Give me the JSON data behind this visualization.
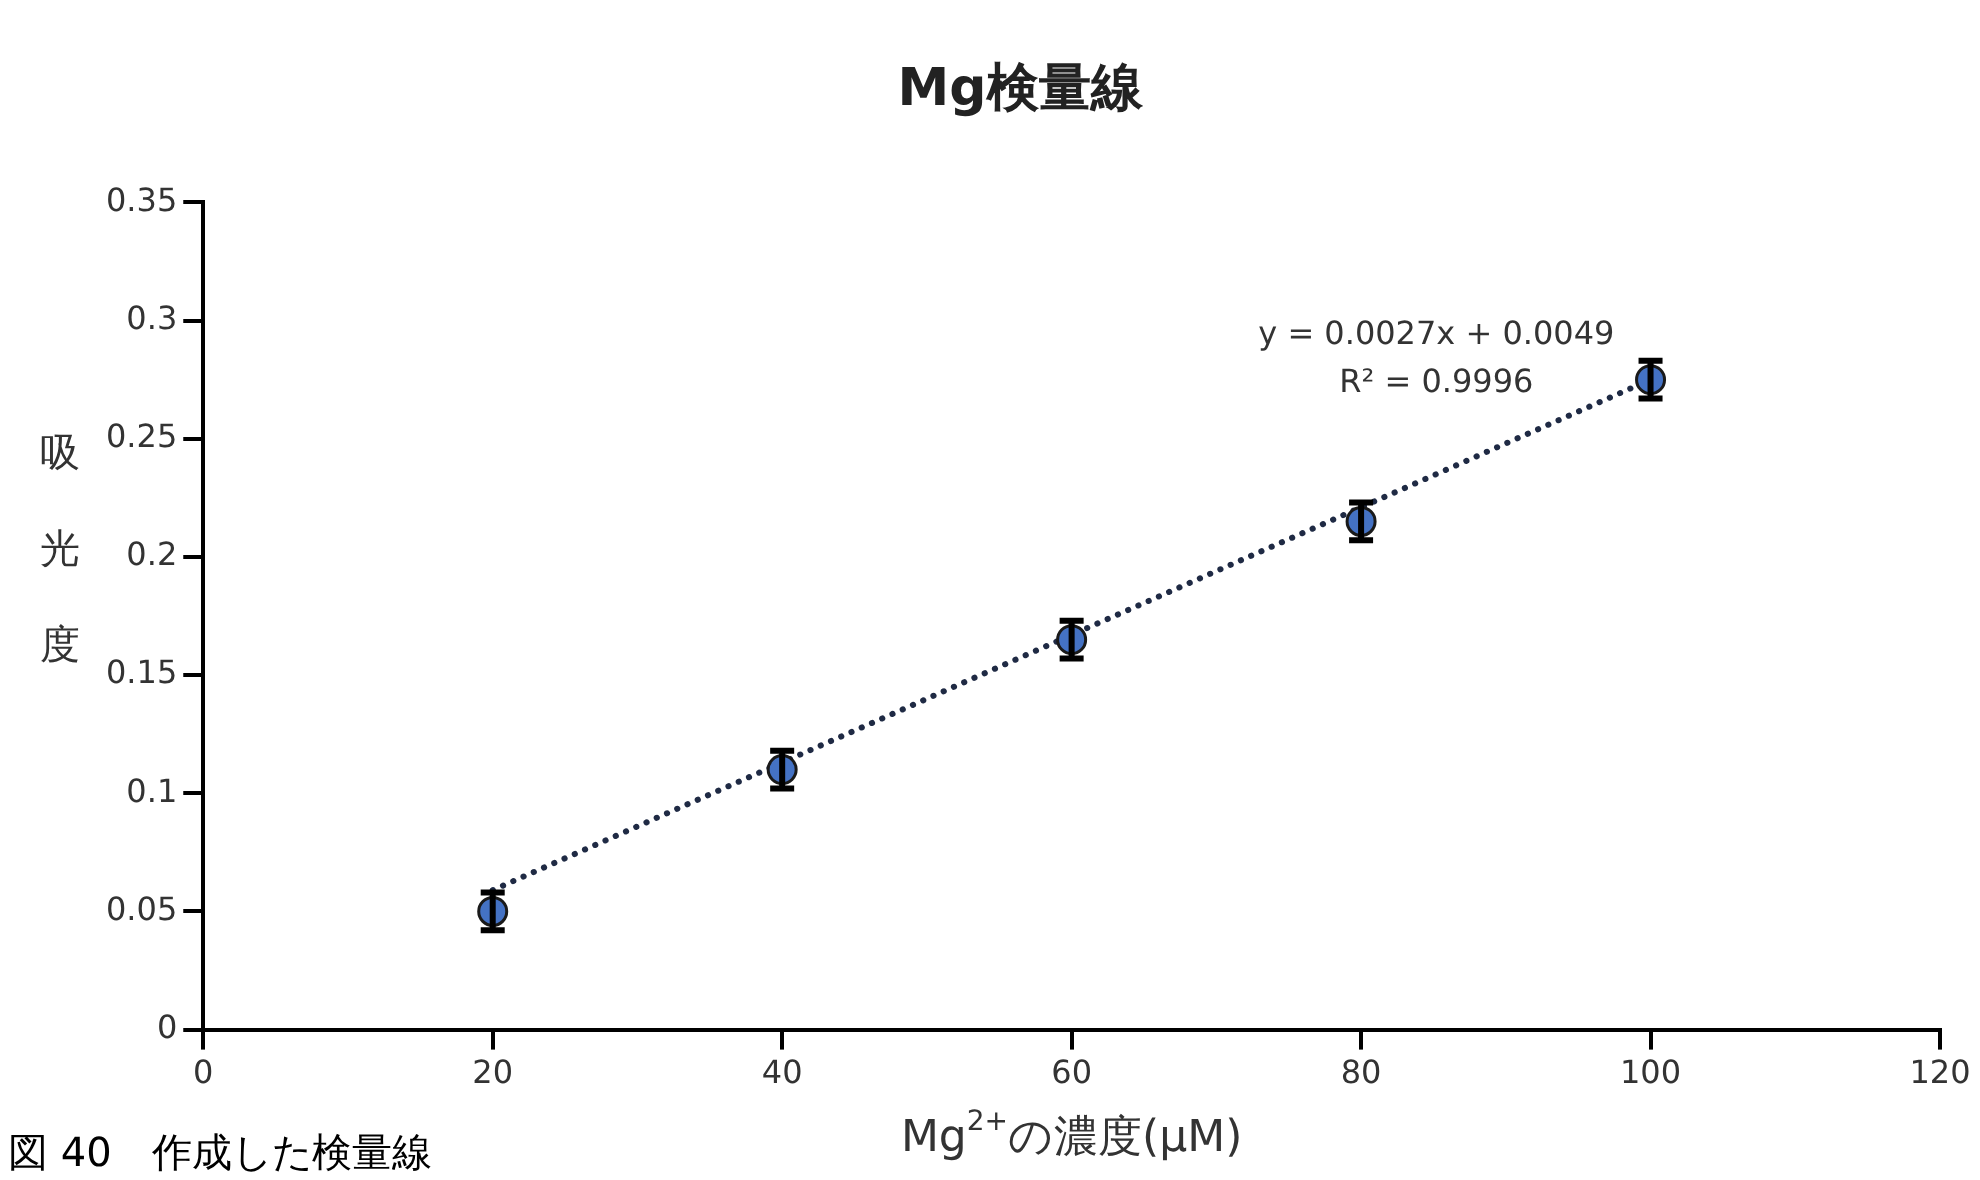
{
  "chart_data": {
    "type": "scatter",
    "title": "Mg検量線",
    "xlabel": "Mg$^{2+}$の濃度(μM)",
    "ylabel": "吸光度",
    "xlim": [
      0,
      120
    ],
    "xticks": [
      0,
      20,
      40,
      60,
      80,
      100,
      120
    ],
    "ylim": [
      0,
      0.35
    ],
    "yticks": [
      0,
      0.05,
      0.1,
      0.15,
      0.2,
      0.25,
      0.3,
      0.35
    ],
    "grid": false,
    "legend": false,
    "series": [
      {
        "color": "#4472c4",
        "marker": "circle",
        "x": [
          20,
          40,
          60,
          80,
          100
        ],
        "values": [
          0.05,
          0.11,
          0.165,
          0.215,
          0.275
        ],
        "errors": [
          0.008,
          0.008,
          0.008,
          0.008,
          0.008
        ]
      },
      {
        "type": "line",
        "color": "#1f2a44",
        "line_style": "dotted",
        "x": [
          20,
          100
        ],
        "values": [
          0.059,
          0.275
        ]
      }
    ],
    "annotations": [
      "y = 0.0027x + 0.0049",
      "R² = 0.9996",
      "図 40　作成した検量線"
    ]
  }
}
